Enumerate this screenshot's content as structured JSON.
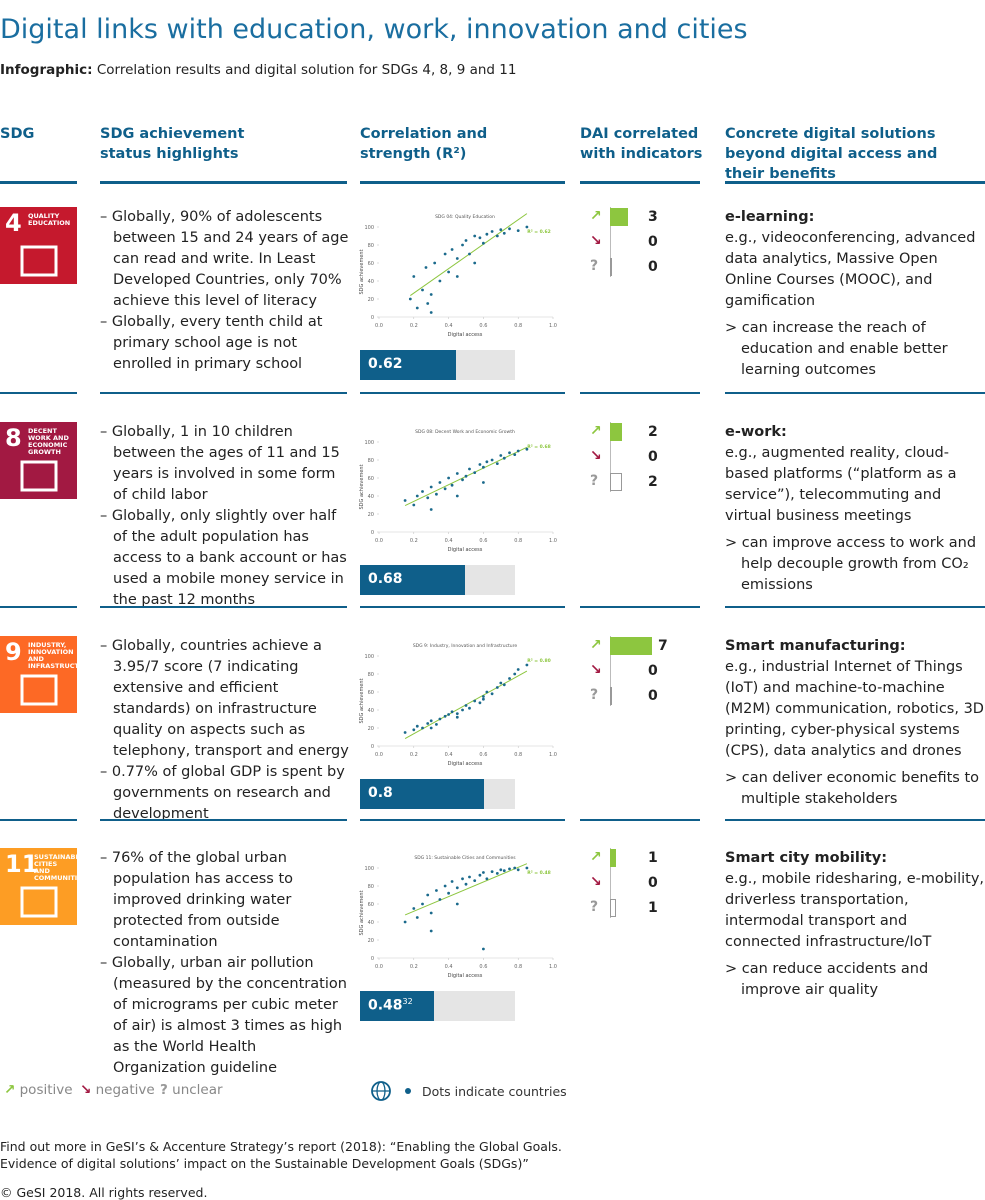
{
  "header": {
    "title": "Digital links with education, work, innovation and cities",
    "subtitle_label": "Infographic:",
    "subtitle": "Correlation results and digital solution for SDGs 4, 8, 9 and 11"
  },
  "columns": [
    "SDG",
    "SDG achievement status highlights",
    "Correlation and strength (R²)",
    "DAI correlated with indicators",
    "Concrete digital solutions beyond digital access and their benefits"
  ],
  "rows": [
    {
      "icon": {
        "number": "4",
        "label": "QUALITY EDUCATION",
        "color": "#c5192d"
      },
      "highlights": [
        "Globally, 90% of adolescents between 15 and 24 years of age can read and write. In Least Developed Countries, only 70% achieve this level of literacy",
        "Globally, every tenth child at primary school age is not enrolled in primary school"
      ],
      "chart": {
        "type": "scatter",
        "title": "SDG 04: Quality Education",
        "r2_label": "R² = 0.62",
        "x_label": "Digital access",
        "y_label": "SDG achievement",
        "color": "#1b6a8c",
        "trend_color": "#8dc63f",
        "xlim": [
          0,
          1
        ],
        "ylim": [
          0,
          100
        ],
        "xticks": [
          {
            "value": 0,
            "label": "0.0"
          },
          0.2,
          0.4,
          0.6,
          0.8,
          {
            "value": 1,
            "label": "1.0"
          }
        ],
        "yticks": [
          0,
          20,
          40,
          60,
          80,
          100
        ],
        "x": [
          0.18,
          0.2,
          0.22,
          0.25,
          0.27,
          0.3,
          0.32,
          0.35,
          0.38,
          0.4,
          0.42,
          0.45,
          0.48,
          0.5,
          0.52,
          0.55,
          0.58,
          0.6,
          0.62,
          0.65,
          0.68,
          0.7,
          0.72,
          0.75,
          0.8,
          0.85,
          0.3,
          0.28,
          0.45,
          0.55
        ],
        "y": [
          20,
          45,
          10,
          30,
          55,
          5,
          60,
          40,
          70,
          50,
          75,
          65,
          80,
          85,
          70,
          90,
          88,
          82,
          92,
          95,
          90,
          97,
          93,
          98,
          96,
          100,
          25,
          15,
          45,
          60
        ]
      },
      "r2": 0.62,
      "indicators": {
        "positive": 3,
        "negative": 0,
        "unclear": 0
      },
      "solution": {
        "title": "e-learning:",
        "examples": "e.g., videoconferencing, advanced data analytics, Massive Open Online Courses (MOOC), and gamification",
        "benefit": "can increase the reach of education and enable better learning outcomes"
      }
    },
    {
      "icon": {
        "number": "8",
        "label": "DECENT WORK AND ECONOMIC GROWTH",
        "color": "#a21942"
      },
      "highlights": [
        "Globally, 1 in 10 children between the ages of 11 and 15 years is involved in some form of child labor",
        "Globally, only slightly over half of the adult population has access to a bank account or has used a mobile money service in the past 12 months"
      ],
      "chart": {
        "type": "scatter",
        "title": "SDG 08: Decent Work and Economic Growth",
        "r2_label": "R² = 0.68",
        "x_label": "Digital access",
        "y_label": "SDG achievement",
        "color": "#1b6a8c",
        "trend_color": "#8dc63f",
        "xlim": [
          0,
          1
        ],
        "ylim": [
          0,
          100
        ],
        "xticks": [
          {
            "value": 0,
            "label": "0.0"
          },
          0.2,
          0.4,
          0.6,
          0.8,
          {
            "value": 1,
            "label": "1.0"
          }
        ],
        "yticks": [
          0,
          20,
          40,
          60,
          80,
          100
        ],
        "x": [
          0.15,
          0.2,
          0.22,
          0.25,
          0.28,
          0.3,
          0.33,
          0.35,
          0.38,
          0.4,
          0.42,
          0.45,
          0.48,
          0.5,
          0.52,
          0.55,
          0.58,
          0.6,
          0.62,
          0.65,
          0.68,
          0.7,
          0.72,
          0.75,
          0.78,
          0.8,
          0.85,
          0.3,
          0.45,
          0.6
        ],
        "y": [
          35,
          30,
          40,
          45,
          38,
          50,
          42,
          55,
          48,
          60,
          52,
          65,
          58,
          62,
          70,
          66,
          75,
          72,
          78,
          80,
          76,
          85,
          82,
          88,
          86,
          90,
          92,
          25,
          40,
          55
        ]
      },
      "r2": 0.68,
      "indicators": {
        "positive": 2,
        "negative": 0,
        "unclear": 2
      },
      "solution": {
        "title": "e-work:",
        "examples": "e.g., augmented reality, cloud-based platforms (“platform as a service”), telecommuting and virtual business meetings",
        "benefit": "can improve access to work and help decouple growth from CO₂ emissions"
      }
    },
    {
      "icon": {
        "number": "9",
        "label": "INDUSTRY, INNOVATION AND INFRASTRUCTURE",
        "color": "#fd6925"
      },
      "highlights": [
        "Globally, countries achieve a 3.95/7 score (7 indicating extensive and efficient standards) on infrastructure quality on aspects such as telephony, transport and energy",
        "0.77% of global GDP is spent by governments on research and development"
      ],
      "chart": {
        "type": "scatter",
        "title": "SDG 9: Industry, Innovation and Infrastructure",
        "r2_label": "R² = 0.80",
        "x_label": "Digital access",
        "y_label": "SDG achievement",
        "color": "#1b6a8c",
        "trend_color": "#8dc63f",
        "xlim": [
          0,
          1
        ],
        "ylim": [
          0,
          100
        ],
        "xticks": [
          {
            "value": 0,
            "label": "0.0"
          },
          0.2,
          0.4,
          0.6,
          0.8,
          {
            "value": 1,
            "label": "1.0"
          }
        ],
        "yticks": [
          0,
          20,
          40,
          60,
          80,
          100
        ],
        "x": [
          0.15,
          0.2,
          0.22,
          0.25,
          0.28,
          0.3,
          0.33,
          0.35,
          0.38,
          0.4,
          0.42,
          0.45,
          0.48,
          0.5,
          0.52,
          0.55,
          0.58,
          0.6,
          0.62,
          0.65,
          0.68,
          0.7,
          0.72,
          0.75,
          0.78,
          0.8,
          0.85,
          0.3,
          0.45,
          0.6
        ],
        "y": [
          15,
          18,
          22,
          20,
          25,
          28,
          24,
          30,
          33,
          35,
          38,
          32,
          40,
          45,
          42,
          50,
          48,
          55,
          60,
          58,
          65,
          70,
          68,
          75,
          80,
          85,
          90,
          20,
          36,
          52
        ]
      },
      "r2": 0.8,
      "indicators": {
        "positive": 7,
        "negative": 0,
        "unclear": 0
      },
      "solution": {
        "title": "Smart manufacturing:",
        "examples": "e.g., industrial Internet of Things (IoT) and machine-to-machine (M2M) communication, robotics, 3D printing, cyber-physical systems (CPS), data analytics and drones",
        "benefit": "can deliver economic benefits to multiple stakeholders"
      }
    },
    {
      "icon": {
        "number": "11",
        "label": "SUSTAINABLE CITIES AND COMMUNITIES",
        "color": "#fd9d24"
      },
      "highlights": [
        "76% of the global urban population has access to improved drinking water protected from outside contamination",
        "Globally, urban air pollution (measured by the concentration of micrograms per cubic meter of air) is almost 3 times as high as the World Health Organization guideline"
      ],
      "chart": {
        "type": "scatter",
        "title": "SDG 11: Sustainable Cities and Communities",
        "r2_label": "R² = 0.48",
        "x_label": "Digital access",
        "y_label": "SDG achievement",
        "color": "#1b6a8c",
        "trend_color": "#8dc63f",
        "xlim": [
          0,
          1
        ],
        "ylim": [
          0,
          100
        ],
        "xticks": [
          {
            "value": 0,
            "label": "0.0"
          },
          0.2,
          0.4,
          0.6,
          0.8,
          {
            "value": 1,
            "label": "1.0"
          }
        ],
        "yticks": [
          0,
          20,
          40,
          60,
          80,
          100
        ],
        "x": [
          0.15,
          0.2,
          0.22,
          0.25,
          0.28,
          0.3,
          0.33,
          0.35,
          0.38,
          0.4,
          0.42,
          0.45,
          0.48,
          0.5,
          0.52,
          0.55,
          0.58,
          0.6,
          0.62,
          0.65,
          0.68,
          0.7,
          0.72,
          0.75,
          0.78,
          0.8,
          0.85,
          0.3,
          0.45,
          0.6
        ],
        "y": [
          40,
          55,
          45,
          60,
          70,
          50,
          75,
          65,
          80,
          72,
          85,
          78,
          88,
          82,
          90,
          86,
          92,
          95,
          88,
          96,
          94,
          98,
          97,
          99,
          100,
          98,
          100,
          30,
          60,
          10
        ]
      },
      "r2": 0.48,
      "r2_note": "32",
      "indicators": {
        "positive": 1,
        "negative": 0,
        "unclear": 1
      },
      "solution": {
        "title": "Smart city mobility:",
        "examples": "e.g., mobile ridesharing, e-mobility, driverless transportation, intermodal transport and connected infrastructure/IoT",
        "benefit": "can reduce accidents and improve air quality"
      }
    }
  ],
  "legend": {
    "positive": "positive",
    "negative": "negative",
    "unclear": "unclear",
    "dots": "Dots indicate countries"
  },
  "footer": {
    "note": "Find out more in GeSI’s & Accenture Strategy’s report (2018): “Enabling the Global Goals. Evidence of digital solutions’ impact on the Sustainable Development Goals (SDGs)”",
    "copyright": "© GeSI 2018. All rights reserved."
  }
}
